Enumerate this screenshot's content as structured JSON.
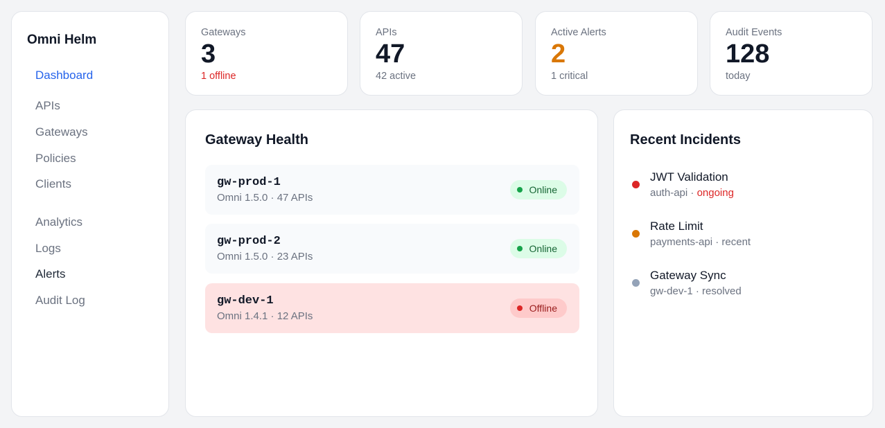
{
  "app": {
    "title": "Omni Helm"
  },
  "nav": {
    "items": [
      {
        "label": "Dashboard"
      },
      {
        "label": "APIs"
      },
      {
        "label": "Gateways"
      },
      {
        "label": "Policies"
      },
      {
        "label": "Clients"
      },
      {
        "label": "Analytics"
      },
      {
        "label": "Logs"
      },
      {
        "label": "Alerts"
      },
      {
        "label": "Audit Log"
      }
    ]
  },
  "stats": [
    {
      "label": "Gateways",
      "value": "3",
      "sub": "1 offline"
    },
    {
      "label": "APIs",
      "value": "47",
      "sub": "42 active"
    },
    {
      "label": "Active Alerts",
      "value": "2",
      "sub": "1 critical"
    },
    {
      "label": "Audit Events",
      "value": "128",
      "sub": "today"
    }
  ],
  "gateway_health": {
    "title": "Gateway Health",
    "gateways": [
      {
        "name": "gw-prod-1",
        "meta": "Omni 1.5.0 · 47 APIs",
        "status": "Online"
      },
      {
        "name": "gw-prod-2",
        "meta": "Omni 1.5.0 · 23 APIs",
        "status": "Online"
      },
      {
        "name": "gw-dev-1",
        "meta": "Omni 1.4.1 · 12 APIs",
        "status": "Offline"
      }
    ]
  },
  "incidents": {
    "title": "Recent Incidents",
    "items": [
      {
        "title": "JWT Validation",
        "source": "auth-api",
        "sep": " · ",
        "state": "ongoing",
        "color": "#dc2626"
      },
      {
        "title": "Rate Limit",
        "source": "payments-api",
        "sep": " · ",
        "state": "recent",
        "color": "#d97706"
      },
      {
        "title": "Gateway Sync",
        "source": "gw-dev-1",
        "sep": " · ",
        "state": "resolved",
        "color": "#94a3b8"
      }
    ]
  },
  "colors": {
    "accent": "#2563eb",
    "danger": "#dc2626",
    "warning": "#d97706",
    "success": "#16a34a"
  }
}
